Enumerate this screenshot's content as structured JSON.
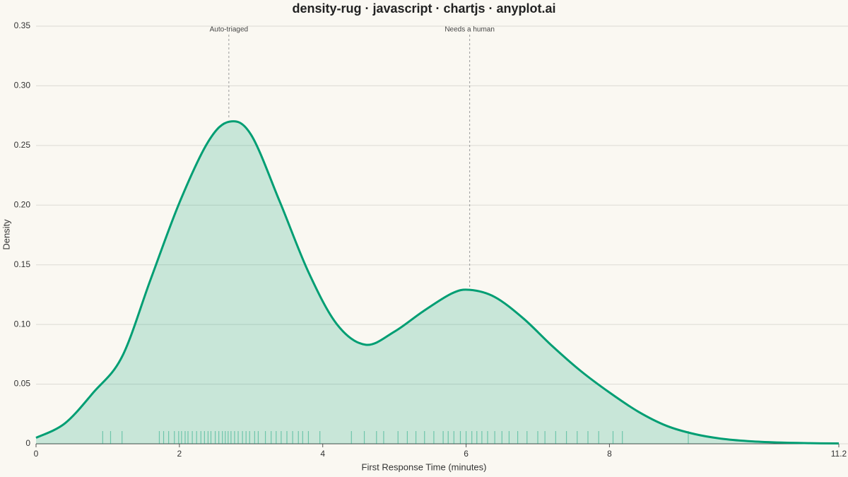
{
  "chart_data": {
    "type": "density-rug",
    "title": "density-rug · javascript · chartjs · anyplot.ai",
    "x_label": "First Response Time (minutes)",
    "y_label": "Density",
    "color": "#009e73",
    "x": [
      0,
      0.4,
      0.8,
      1.2,
      1.6,
      2.0,
      2.4,
      2.7,
      3.0,
      3.4,
      3.8,
      4.2,
      4.6,
      5.0,
      5.4,
      5.8,
      6.05,
      6.4,
      6.8,
      7.2,
      7.6,
      8.0,
      8.4,
      8.8,
      9.2,
      9.6,
      10.0,
      10.4,
      10.8,
      11.2
    ],
    "values": [
      0.005,
      0.017,
      0.043,
      0.073,
      0.138,
      0.202,
      0.253,
      0.27,
      0.259,
      0.203,
      0.144,
      0.1,
      0.083,
      0.094,
      0.111,
      0.126,
      0.129,
      0.123,
      0.105,
      0.082,
      0.061,
      0.043,
      0.027,
      0.015,
      0.008,
      0.004,
      0.002,
      0.001,
      0.0005,
      0.0003
    ],
    "rug": [
      0.93,
      1.04,
      1.2,
      1.72,
      1.78,
      1.85,
      1.93,
      1.99,
      2.03,
      2.08,
      2.12,
      2.18,
      2.24,
      2.3,
      2.35,
      2.4,
      2.44,
      2.5,
      2.55,
      2.6,
      2.64,
      2.68,
      2.72,
      2.77,
      2.82,
      2.88,
      2.93,
      2.98,
      3.05,
      3.1,
      3.2,
      3.28,
      3.35,
      3.42,
      3.5,
      3.58,
      3.66,
      3.72,
      3.8,
      3.96,
      4.4,
      4.58,
      4.75,
      4.85,
      5.05,
      5.18,
      5.3,
      5.42,
      5.55,
      5.68,
      5.75,
      5.83,
      5.92,
      6.0,
      6.08,
      6.15,
      6.22,
      6.3,
      6.4,
      6.5,
      6.6,
      6.72,
      6.85,
      7.0,
      7.1,
      7.25,
      7.4,
      7.55,
      7.7,
      7.85,
      8.05,
      8.18,
      9.1
    ],
    "annotations": [
      {
        "text": "Auto-triaged",
        "x": 2.69,
        "y": 0.27
      },
      {
        "text": "Needs a human",
        "x": 6.05,
        "y": 0.129
      }
    ],
    "xlim": [
      0,
      11.2
    ],
    "xticks": [
      0,
      2,
      4,
      6,
      8,
      11.2
    ],
    "ylim": [
      0,
      0.35
    ],
    "yticks": [
      0,
      0.05,
      {
        "value": 0.1,
        "label": "0.10"
      },
      0.15,
      {
        "value": 0.2,
        "label": "0.20"
      },
      0.25,
      {
        "value": 0.3,
        "label": "0.30"
      },
      0.35
    ],
    "grid": true
  }
}
